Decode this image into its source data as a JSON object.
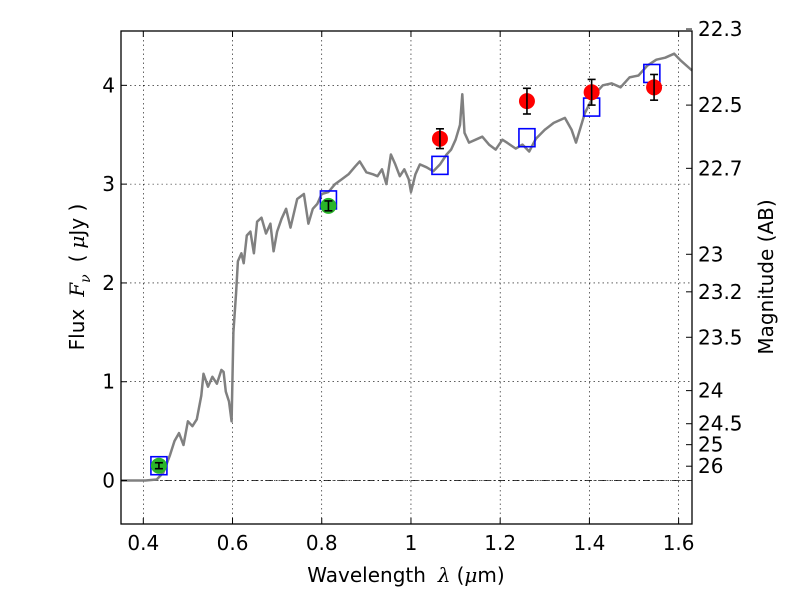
{
  "chart_data": {
    "type": "line",
    "xlabel_text": "Wavelength",
    "xlabel_symbol": "λ",
    "xlabel_unit_open": "(",
    "xlabel_unit_mu": "μ",
    "xlabel_unit": "m)",
    "ylabel_text": "Flux",
    "ylabel_symbol": "F",
    "ylabel_sub": "ν",
    "ylabel_unit_open": "(",
    "ylabel_unit_mu": "μ",
    "ylabel_unit": "Jy )",
    "y2label": "Magnitude (AB)",
    "xlim": [
      0.35,
      1.63
    ],
    "ylim": [
      -0.44,
      4.55
    ],
    "grid": true,
    "x_ticks": [
      {
        "value": 0.4,
        "label": "0.4"
      },
      {
        "value": 0.6,
        "label": "0.6"
      },
      {
        "value": 0.8,
        "label": "0.8"
      },
      {
        "value": 1.0,
        "label": "1"
      },
      {
        "value": 1.2,
        "label": "1.2"
      },
      {
        "value": 1.4,
        "label": "1.4"
      },
      {
        "value": 1.6,
        "label": "1.6"
      }
    ],
    "y_ticks": [
      {
        "value": 0,
        "label": "0"
      },
      {
        "value": 1,
        "label": "1"
      },
      {
        "value": 2,
        "label": "2"
      },
      {
        "value": 3,
        "label": "3"
      },
      {
        "value": 4,
        "label": "4"
      }
    ],
    "mag_ticks": [
      {
        "flux": 4.57,
        "label": "22.3"
      },
      {
        "flux": 3.8,
        "label": "22.5"
      },
      {
        "flux": 3.16,
        "label": "22.7"
      },
      {
        "flux": 2.29,
        "label": "23"
      },
      {
        "flux": 1.91,
        "label": "23.2"
      },
      {
        "flux": 1.45,
        "label": "23.5"
      },
      {
        "flux": 0.91,
        "label": "24"
      },
      {
        "flux": 0.575,
        "label": "24.5"
      },
      {
        "flux": 0.363,
        "label": "25"
      },
      {
        "flux": 0.145,
        "label": "26"
      }
    ],
    "model_color": "#808080",
    "model_sed": [
      [
        0.35,
        0.0
      ],
      [
        0.405,
        0.0
      ],
      [
        0.43,
        0.01
      ],
      [
        0.445,
        0.08
      ],
      [
        0.46,
        0.26
      ],
      [
        0.47,
        0.4
      ],
      [
        0.48,
        0.48
      ],
      [
        0.49,
        0.36
      ],
      [
        0.5,
        0.6
      ],
      [
        0.51,
        0.55
      ],
      [
        0.52,
        0.62
      ],
      [
        0.53,
        0.86
      ],
      [
        0.535,
        1.08
      ],
      [
        0.545,
        0.95
      ],
      [
        0.555,
        1.05
      ],
      [
        0.565,
        0.98
      ],
      [
        0.575,
        1.12
      ],
      [
        0.58,
        1.1
      ],
      [
        0.585,
        0.9
      ],
      [
        0.592,
        0.8
      ],
      [
        0.598,
        0.6
      ],
      [
        0.602,
        1.5
      ],
      [
        0.608,
        1.9
      ],
      [
        0.612,
        2.22
      ],
      [
        0.62,
        2.3
      ],
      [
        0.625,
        2.2
      ],
      [
        0.632,
        2.48
      ],
      [
        0.64,
        2.52
      ],
      [
        0.648,
        2.3
      ],
      [
        0.655,
        2.62
      ],
      [
        0.665,
        2.66
      ],
      [
        0.675,
        2.5
      ],
      [
        0.685,
        2.6
      ],
      [
        0.692,
        2.32
      ],
      [
        0.7,
        2.52
      ],
      [
        0.71,
        2.65
      ],
      [
        0.72,
        2.75
      ],
      [
        0.73,
        2.56
      ],
      [
        0.745,
        2.85
      ],
      [
        0.76,
        2.9
      ],
      [
        0.77,
        2.6
      ],
      [
        0.78,
        2.75
      ],
      [
        0.79,
        2.8
      ],
      [
        0.8,
        2.9
      ],
      [
        0.815,
        2.92
      ],
      [
        0.83,
        3.0
      ],
      [
        0.845,
        3.05
      ],
      [
        0.86,
        3.1
      ],
      [
        0.875,
        3.18
      ],
      [
        0.885,
        3.23
      ],
      [
        0.9,
        3.12
      ],
      [
        0.915,
        3.1
      ],
      [
        0.925,
        3.08
      ],
      [
        0.935,
        3.15
      ],
      [
        0.945,
        3.0
      ],
      [
        0.955,
        3.3
      ],
      [
        0.965,
        3.2
      ],
      [
        0.975,
        3.08
      ],
      [
        0.985,
        3.15
      ],
      [
        0.995,
        3.05
      ],
      [
        1.0,
        2.92
      ],
      [
        1.01,
        3.1
      ],
      [
        1.02,
        3.2
      ],
      [
        1.035,
        3.17
      ],
      [
        1.05,
        3.13
      ],
      [
        1.065,
        3.2
      ],
      [
        1.08,
        3.3
      ],
      [
        1.09,
        3.35
      ],
      [
        1.1,
        3.45
      ],
      [
        1.11,
        3.6
      ],
      [
        1.115,
        3.91
      ],
      [
        1.12,
        3.52
      ],
      [
        1.13,
        3.42
      ],
      [
        1.145,
        3.45
      ],
      [
        1.16,
        3.48
      ],
      [
        1.175,
        3.4
      ],
      [
        1.19,
        3.35
      ],
      [
        1.205,
        3.45
      ],
      [
        1.215,
        3.42
      ],
      [
        1.235,
        3.36
      ],
      [
        1.25,
        3.4
      ],
      [
        1.265,
        3.33
      ],
      [
        1.28,
        3.46
      ],
      [
        1.3,
        3.55
      ],
      [
        1.32,
        3.62
      ],
      [
        1.345,
        3.67
      ],
      [
        1.36,
        3.55
      ],
      [
        1.37,
        3.42
      ],
      [
        1.39,
        3.72
      ],
      [
        1.41,
        3.9
      ],
      [
        1.43,
        4.0
      ],
      [
        1.45,
        4.02
      ],
      [
        1.47,
        3.98
      ],
      [
        1.49,
        4.08
      ],
      [
        1.51,
        4.1
      ],
      [
        1.53,
        4.2
      ],
      [
        1.55,
        4.26
      ],
      [
        1.57,
        4.28
      ],
      [
        1.59,
        4.32
      ],
      [
        1.605,
        4.25
      ],
      [
        1.63,
        4.15
      ]
    ],
    "model_bandpasses": [
      {
        "x": 0.435,
        "y": 0.15
      },
      {
        "x": 0.815,
        "y": 2.84
      },
      {
        "x": 1.065,
        "y": 3.19
      },
      {
        "x": 1.26,
        "y": 3.47
      },
      {
        "x": 1.405,
        "y": 3.78
      },
      {
        "x": 1.54,
        "y": 4.12
      }
    ],
    "observed": [
      {
        "x": 0.435,
        "y": 0.15,
        "err": 0.03,
        "color": "#2ab52a"
      },
      {
        "x": 0.815,
        "y": 2.78,
        "err": 0.05,
        "color": "#2ab52a"
      },
      {
        "x": 1.065,
        "y": 3.46,
        "err": 0.1,
        "color": "#ff0000"
      },
      {
        "x": 1.26,
        "y": 3.84,
        "err": 0.13,
        "color": "#ff0000"
      },
      {
        "x": 1.405,
        "y": 3.93,
        "err": 0.13,
        "color": "#ff0000"
      },
      {
        "x": 1.545,
        "y": 3.98,
        "err": 0.13,
        "color": "#ff0000"
      }
    ],
    "box_color": "#0000ff",
    "errorbar_color": "#000000"
  }
}
